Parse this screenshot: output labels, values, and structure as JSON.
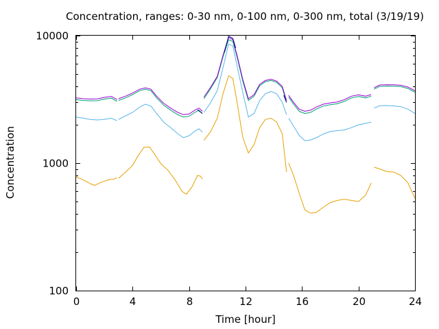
{
  "chart_data": {
    "type": "line",
    "title": "Concentration, ranges: 0-30 nm, 0-100 nm, 0-300 nm, total (3/19/19)",
    "xlabel": "Time [hour]",
    "ylabel": "Concentration",
    "xlim": [
      0,
      24
    ],
    "ylim": [
      100,
      10000
    ],
    "yscale": "log",
    "grid": false,
    "legend": "none",
    "x_ticks": [
      "0",
      "4",
      "8",
      "12",
      "16",
      "20",
      "24"
    ],
    "y_ticks": [
      "100",
      "1000",
      "10000"
    ],
    "series": [
      {
        "color": "#e69f00",
        "segments": [
          [
            [
              0,
              780
            ],
            [
              0.5,
              740
            ],
            [
              1,
              690
            ],
            [
              1.3,
              670
            ],
            [
              1.8,
              710
            ],
            [
              2.3,
              740
            ],
            [
              2.7,
              750
            ],
            [
              2.9,
              770
            ]
          ],
          [
            [
              3.0,
              760
            ],
            [
              3.5,
              850
            ],
            [
              4,
              960
            ],
            [
              4.4,
              1150
            ],
            [
              4.8,
              1330
            ],
            [
              5.2,
              1340
            ],
            [
              5.5,
              1200
            ],
            [
              6,
              990
            ],
            [
              6.5,
              880
            ],
            [
              7,
              740
            ],
            [
              7.5,
              600
            ],
            [
              7.8,
              570
            ],
            [
              8.2,
              650
            ],
            [
              8.6,
              800
            ],
            [
              8.8,
              790
            ],
            [
              8.95,
              750
            ]
          ],
          [
            [
              9.05,
              1510
            ],
            [
              9.5,
              1750
            ],
            [
              10,
              2250
            ],
            [
              10.4,
              3500
            ],
            [
              10.8,
              4850
            ],
            [
              11.1,
              4600
            ],
            [
              11.4,
              3000
            ],
            [
              11.8,
              1600
            ],
            [
              12.2,
              1200
            ],
            [
              12.6,
              1400
            ],
            [
              13,
              1900
            ],
            [
              13.4,
              2200
            ],
            [
              13.8,
              2250
            ],
            [
              14.2,
              2100
            ],
            [
              14.6,
              1700
            ],
            [
              14.9,
              850
            ]
          ],
          [
            [
              15.05,
              1000
            ],
            [
              15.4,
              800
            ],
            [
              15.8,
              580
            ],
            [
              16.2,
              430
            ],
            [
              16.6,
              405
            ],
            [
              17,
              410
            ],
            [
              17.5,
              450
            ],
            [
              18,
              490
            ],
            [
              18.5,
              510
            ],
            [
              19,
              520
            ],
            [
              19.5,
              510
            ],
            [
              20,
              500
            ],
            [
              20.5,
              560
            ],
            [
              20.9,
              700
            ]
          ],
          [
            [
              21.1,
              930
            ],
            [
              21.5,
              900
            ],
            [
              22,
              860
            ],
            [
              22.5,
              850
            ],
            [
              23,
              800
            ],
            [
              23.5,
              700
            ],
            [
              24,
              530
            ]
          ]
        ]
      },
      {
        "color": "#56b4e9",
        "segments": [
          [
            [
              0,
              2300
            ],
            [
              0.5,
              2250
            ],
            [
              1,
              2200
            ],
            [
              1.5,
              2180
            ],
            [
              2,
              2200
            ],
            [
              2.5,
              2250
            ],
            [
              2.9,
              2150
            ]
          ],
          [
            [
              3.0,
              2200
            ],
            [
              3.5,
              2350
            ],
            [
              4,
              2500
            ],
            [
              4.5,
              2750
            ],
            [
              4.9,
              2900
            ],
            [
              5.3,
              2800
            ],
            [
              5.7,
              2450
            ],
            [
              6.2,
              2100
            ],
            [
              6.7,
              1900
            ],
            [
              7.2,
              1700
            ],
            [
              7.6,
              1580
            ],
            [
              8,
              1640
            ],
            [
              8.4,
              1780
            ],
            [
              8.7,
              1860
            ],
            [
              8.95,
              1750
            ]
          ],
          [
            [
              9.05,
              2500
            ],
            [
              9.5,
              2950
            ],
            [
              10,
              3700
            ],
            [
              10.4,
              5600
            ],
            [
              10.8,
              8600
            ],
            [
              11.1,
              8300
            ],
            [
              11.4,
              5800
            ],
            [
              11.8,
              3600
            ],
            [
              12.2,
              2300
            ],
            [
              12.6,
              2450
            ],
            [
              13,
              3100
            ],
            [
              13.4,
              3500
            ],
            [
              13.8,
              3650
            ],
            [
              14.2,
              3500
            ],
            [
              14.6,
              3000
            ],
            [
              14.9,
              2400
            ]
          ],
          [
            [
              15.05,
              2250
            ],
            [
              15.4,
              1950
            ],
            [
              15.8,
              1650
            ],
            [
              16.2,
              1500
            ],
            [
              16.6,
              1520
            ],
            [
              17,
              1580
            ],
            [
              17.5,
              1690
            ],
            [
              18,
              1770
            ],
            [
              18.5,
              1800
            ],
            [
              19,
              1820
            ],
            [
              19.5,
              1900
            ],
            [
              20,
              2000
            ],
            [
              20.5,
              2050
            ],
            [
              20.9,
              2100
            ]
          ],
          [
            [
              21.1,
              2700
            ],
            [
              21.5,
              2820
            ],
            [
              22,
              2830
            ],
            [
              22.5,
              2810
            ],
            [
              23,
              2770
            ],
            [
              23.5,
              2650
            ],
            [
              24,
              2450
            ]
          ]
        ]
      },
      {
        "color": "#009e73",
        "segments": [
          [
            [
              0,
              3150
            ],
            [
              0.5,
              3100
            ],
            [
              1,
              3080
            ],
            [
              1.5,
              3090
            ],
            [
              2,
              3180
            ],
            [
              2.5,
              3230
            ],
            [
              2.9,
              3050
            ]
          ],
          [
            [
              3.0,
              3100
            ],
            [
              3.5,
              3250
            ],
            [
              4,
              3450
            ],
            [
              4.5,
              3700
            ],
            [
              4.9,
              3800
            ],
            [
              5.3,
              3700
            ],
            [
              5.7,
              3250
            ],
            [
              6.2,
              2850
            ],
            [
              6.7,
              2600
            ],
            [
              7.2,
              2400
            ],
            [
              7.6,
              2300
            ],
            [
              8,
              2330
            ],
            [
              8.4,
              2500
            ],
            [
              8.7,
              2600
            ],
            [
              8.95,
              2450
            ]
          ],
          [
            [
              9.05,
              3200
            ],
            [
              9.5,
              3800
            ],
            [
              10,
              4700
            ],
            [
              10.4,
              6800
            ],
            [
              10.8,
              9300
            ],
            [
              11.1,
              9000
            ],
            [
              11.4,
              6800
            ],
            [
              11.8,
              4400
            ],
            [
              12.2,
              3100
            ],
            [
              12.6,
              3350
            ],
            [
              13,
              4050
            ],
            [
              13.4,
              4350
            ],
            [
              13.8,
              4450
            ],
            [
              14.2,
              4300
            ],
            [
              14.6,
              3900
            ],
            [
              14.9,
              3000
            ]
          ],
          [
            [
              15.05,
              3300
            ],
            [
              15.4,
              2900
            ],
            [
              15.8,
              2550
            ],
            [
              16.2,
              2450
            ],
            [
              16.6,
              2500
            ],
            [
              17,
              2650
            ],
            [
              17.5,
              2800
            ],
            [
              18,
              2870
            ],
            [
              18.5,
              2920
            ],
            [
              19,
              3050
            ],
            [
              19.5,
              3250
            ],
            [
              20,
              3330
            ],
            [
              20.5,
              3250
            ],
            [
              20.9,
              3350
            ]
          ],
          [
            [
              21.1,
              3800
            ],
            [
              21.5,
              4000
            ],
            [
              22,
              4020
            ],
            [
              22.5,
              4010
            ],
            [
              23,
              3980
            ],
            [
              23.5,
              3850
            ],
            [
              24,
              3600
            ]
          ]
        ]
      },
      {
        "color": "#9400d3",
        "segments": [
          [
            [
              0,
              3250
            ],
            [
              0.5,
              3200
            ],
            [
              1,
              3180
            ],
            [
              1.5,
              3190
            ],
            [
              2,
              3280
            ],
            [
              2.5,
              3330
            ],
            [
              2.9,
              3150
            ]
          ],
          [
            [
              3.0,
              3200
            ],
            [
              3.5,
              3350
            ],
            [
              4,
              3550
            ],
            [
              4.5,
              3800
            ],
            [
              4.9,
              3900
            ],
            [
              5.3,
              3800
            ],
            [
              5.7,
              3350
            ],
            [
              6.2,
              2950
            ],
            [
              6.7,
              2700
            ],
            [
              7.2,
              2500
            ],
            [
              7.6,
              2400
            ],
            [
              8,
              2430
            ],
            [
              8.4,
              2600
            ],
            [
              8.7,
              2700
            ],
            [
              8.95,
              2550
            ]
          ],
          [
            [
              9.05,
              3300
            ],
            [
              9.5,
              3900
            ],
            [
              10,
              4800
            ],
            [
              10.4,
              7000
            ],
            [
              10.8,
              9700
            ],
            [
              11.1,
              9300
            ],
            [
              11.4,
              7000
            ],
            [
              11.8,
              4550
            ],
            [
              12.2,
              3200
            ],
            [
              12.6,
              3450
            ],
            [
              13,
              4150
            ],
            [
              13.4,
              4450
            ],
            [
              13.8,
              4550
            ],
            [
              14.2,
              4400
            ],
            [
              14.6,
              4000
            ],
            [
              14.9,
              3100
            ]
          ],
          [
            [
              15.05,
              3400
            ],
            [
              15.4,
              3000
            ],
            [
              15.8,
              2650
            ],
            [
              16.2,
              2550
            ],
            [
              16.6,
              2600
            ],
            [
              17,
              2750
            ],
            [
              17.5,
              2900
            ],
            [
              18,
              2970
            ],
            [
              18.5,
              3020
            ],
            [
              19,
              3150
            ],
            [
              19.5,
              3350
            ],
            [
              20,
              3430
            ],
            [
              20.5,
              3350
            ],
            [
              20.9,
              3450
            ]
          ],
          [
            [
              21.1,
              3900
            ],
            [
              21.5,
              4100
            ],
            [
              22,
              4120
            ],
            [
              22.5,
              4110
            ],
            [
              23,
              4080
            ],
            [
              23.5,
              3950
            ],
            [
              24,
              3700
            ]
          ]
        ]
      },
      {
        "color": "#000080",
        "segments": [
          [
            [
              8.6,
              2620
            ],
            [
              8.95,
              2450
            ]
          ],
          [
            [
              10.5,
              7400
            ],
            [
              10.8,
              9900
            ],
            [
              11.1,
              9500
            ],
            [
              11.3,
              8000
            ]
          ],
          [
            [
              14.7,
              3400
            ],
            [
              14.9,
              3000
            ]
          ]
        ]
      }
    ]
  }
}
